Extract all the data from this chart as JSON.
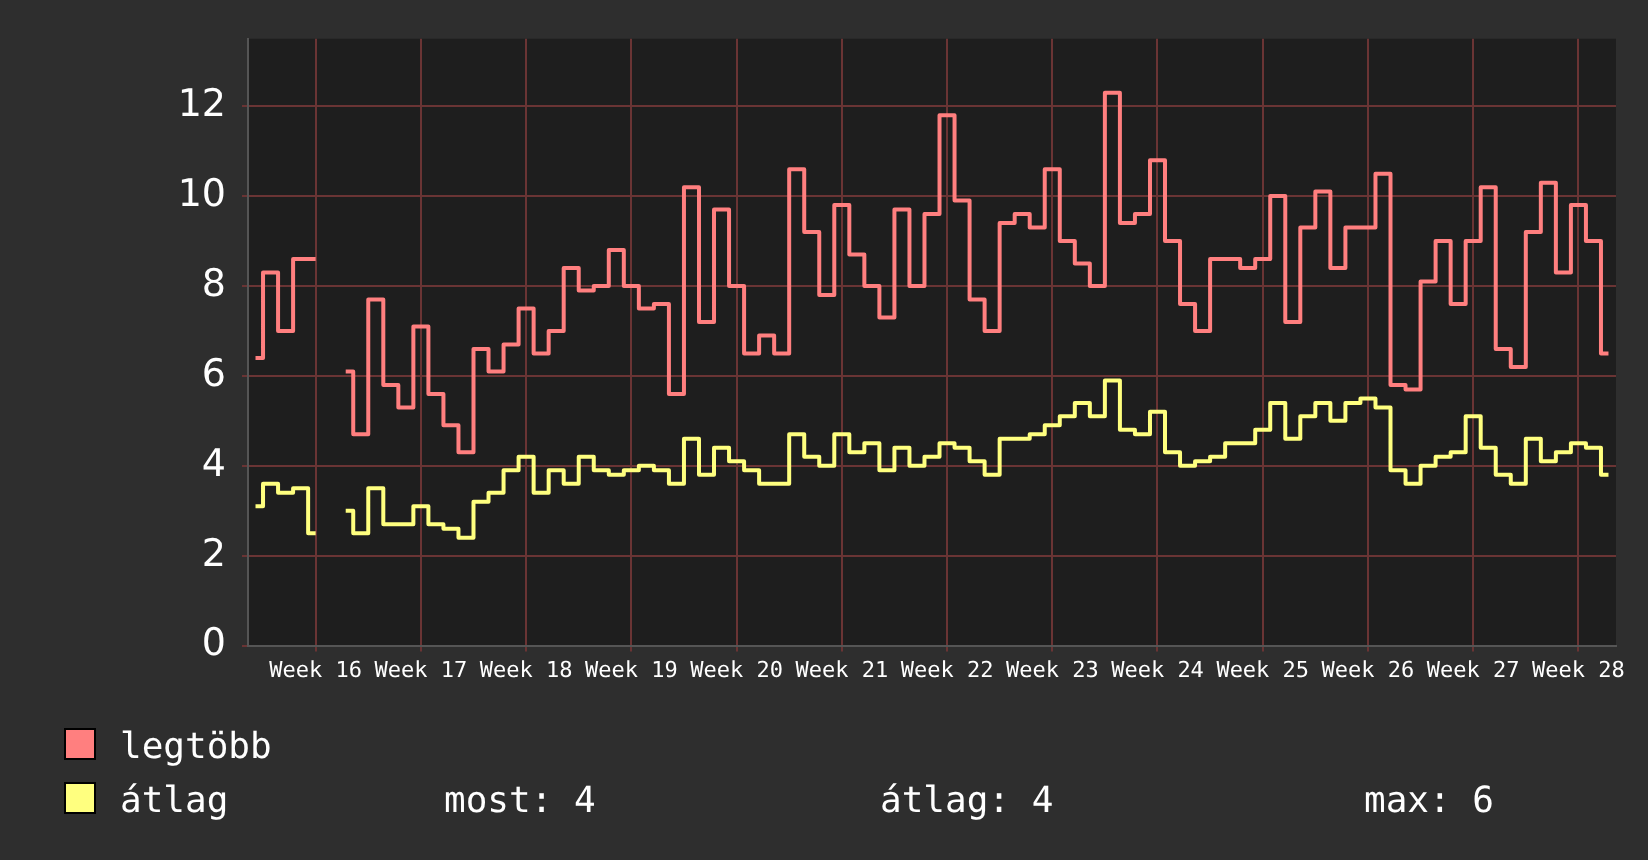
{
  "chart_data": {
    "type": "step",
    "categories": [
      null,
      null,
      null,
      null,
      "Week 16",
      null,
      null,
      null,
      null,
      null,
      null,
      "Week 17",
      null,
      null,
      null,
      null,
      null,
      null,
      "Week 18",
      null,
      null,
      null,
      null,
      null,
      null,
      "Week 19",
      null,
      null,
      null,
      null,
      null,
      null,
      "Week 20",
      null,
      null,
      null,
      null,
      null,
      null,
      "Week 21",
      null,
      null,
      null,
      null,
      null,
      null,
      "Week 22",
      null,
      null,
      null,
      null,
      null,
      null,
      "Week 23",
      null,
      null,
      null,
      null,
      null,
      null,
      "Week 24",
      null,
      null,
      null,
      null,
      null,
      null,
      "Week 25",
      null,
      null,
      null,
      null,
      null,
      null,
      "Week 26",
      null,
      null,
      null,
      null,
      null,
      null,
      "Week 27",
      null,
      null,
      null,
      null,
      null,
      null,
      "Week 28",
      null,
      null
    ],
    "series": [
      {
        "name": "legtöbb",
        "color": "#ff7f7f",
        "values": [
          6.4,
          8.3,
          7.0,
          8.6,
          8.6,
          null,
          6.1,
          4.7,
          7.7,
          5.8,
          5.3,
          7.1,
          5.6,
          4.9,
          4.3,
          6.6,
          6.1,
          6.7,
          7.5,
          6.5,
          7.0,
          8.4,
          7.9,
          8.0,
          8.8,
          8.0,
          7.5,
          7.6,
          5.6,
          10.2,
          7.2,
          9.7,
          8.0,
          6.5,
          6.9,
          6.5,
          10.6,
          9.2,
          7.8,
          9.8,
          8.7,
          8.0,
          7.3,
          9.7,
          8.0,
          9.6,
          11.8,
          9.9,
          7.7,
          7.0,
          9.4,
          9.6,
          9.3,
          10.6,
          9.0,
          8.5,
          8.0,
          12.3,
          9.4,
          9.6,
          10.8,
          9.0,
          7.6,
          7.0,
          8.6,
          8.6,
          8.4,
          8.6,
          10.0,
          7.2,
          9.3,
          10.1,
          8.4,
          9.3,
          9.3,
          10.5,
          5.8,
          5.7,
          8.1,
          9.0,
          7.6,
          9.0,
          10.2,
          6.6,
          6.2,
          9.2,
          10.3,
          8.3,
          9.8,
          9.0,
          6.5
        ]
      },
      {
        "name": "átlag",
        "color": "#ffff7f",
        "values": [
          3.1,
          3.6,
          3.4,
          3.5,
          2.5,
          null,
          3.0,
          2.5,
          3.5,
          2.7,
          2.7,
          3.1,
          2.7,
          2.6,
          2.4,
          3.2,
          3.4,
          3.9,
          4.2,
          3.4,
          3.9,
          3.6,
          4.2,
          3.9,
          3.8,
          3.9,
          4.0,
          3.9,
          3.6,
          4.6,
          3.8,
          4.4,
          4.1,
          3.9,
          3.6,
          3.6,
          4.7,
          4.2,
          4.0,
          4.7,
          4.3,
          4.5,
          3.9,
          4.4,
          4.0,
          4.2,
          4.5,
          4.4,
          4.1,
          3.8,
          4.6,
          4.6,
          4.7,
          4.9,
          5.1,
          5.4,
          5.1,
          5.9,
          4.8,
          4.7,
          5.2,
          4.3,
          4.0,
          4.1,
          4.2,
          4.5,
          4.5,
          4.8,
          5.4,
          4.6,
          5.1,
          5.4,
          5.0,
          5.4,
          5.5,
          5.3,
          3.9,
          3.6,
          4.0,
          4.2,
          4.3,
          5.1,
          4.4,
          3.8,
          3.6,
          4.6,
          4.1,
          4.3,
          4.5,
          4.4,
          3.8
        ]
      }
    ],
    "ylim": [
      0,
      13.5
    ],
    "yticks": [
      0,
      2,
      4,
      6,
      8,
      10,
      12
    ],
    "grid": true,
    "legend": "bottom",
    "annotations": [
      "most: 4",
      "átlag: 4",
      "max: 6"
    ]
  }
}
